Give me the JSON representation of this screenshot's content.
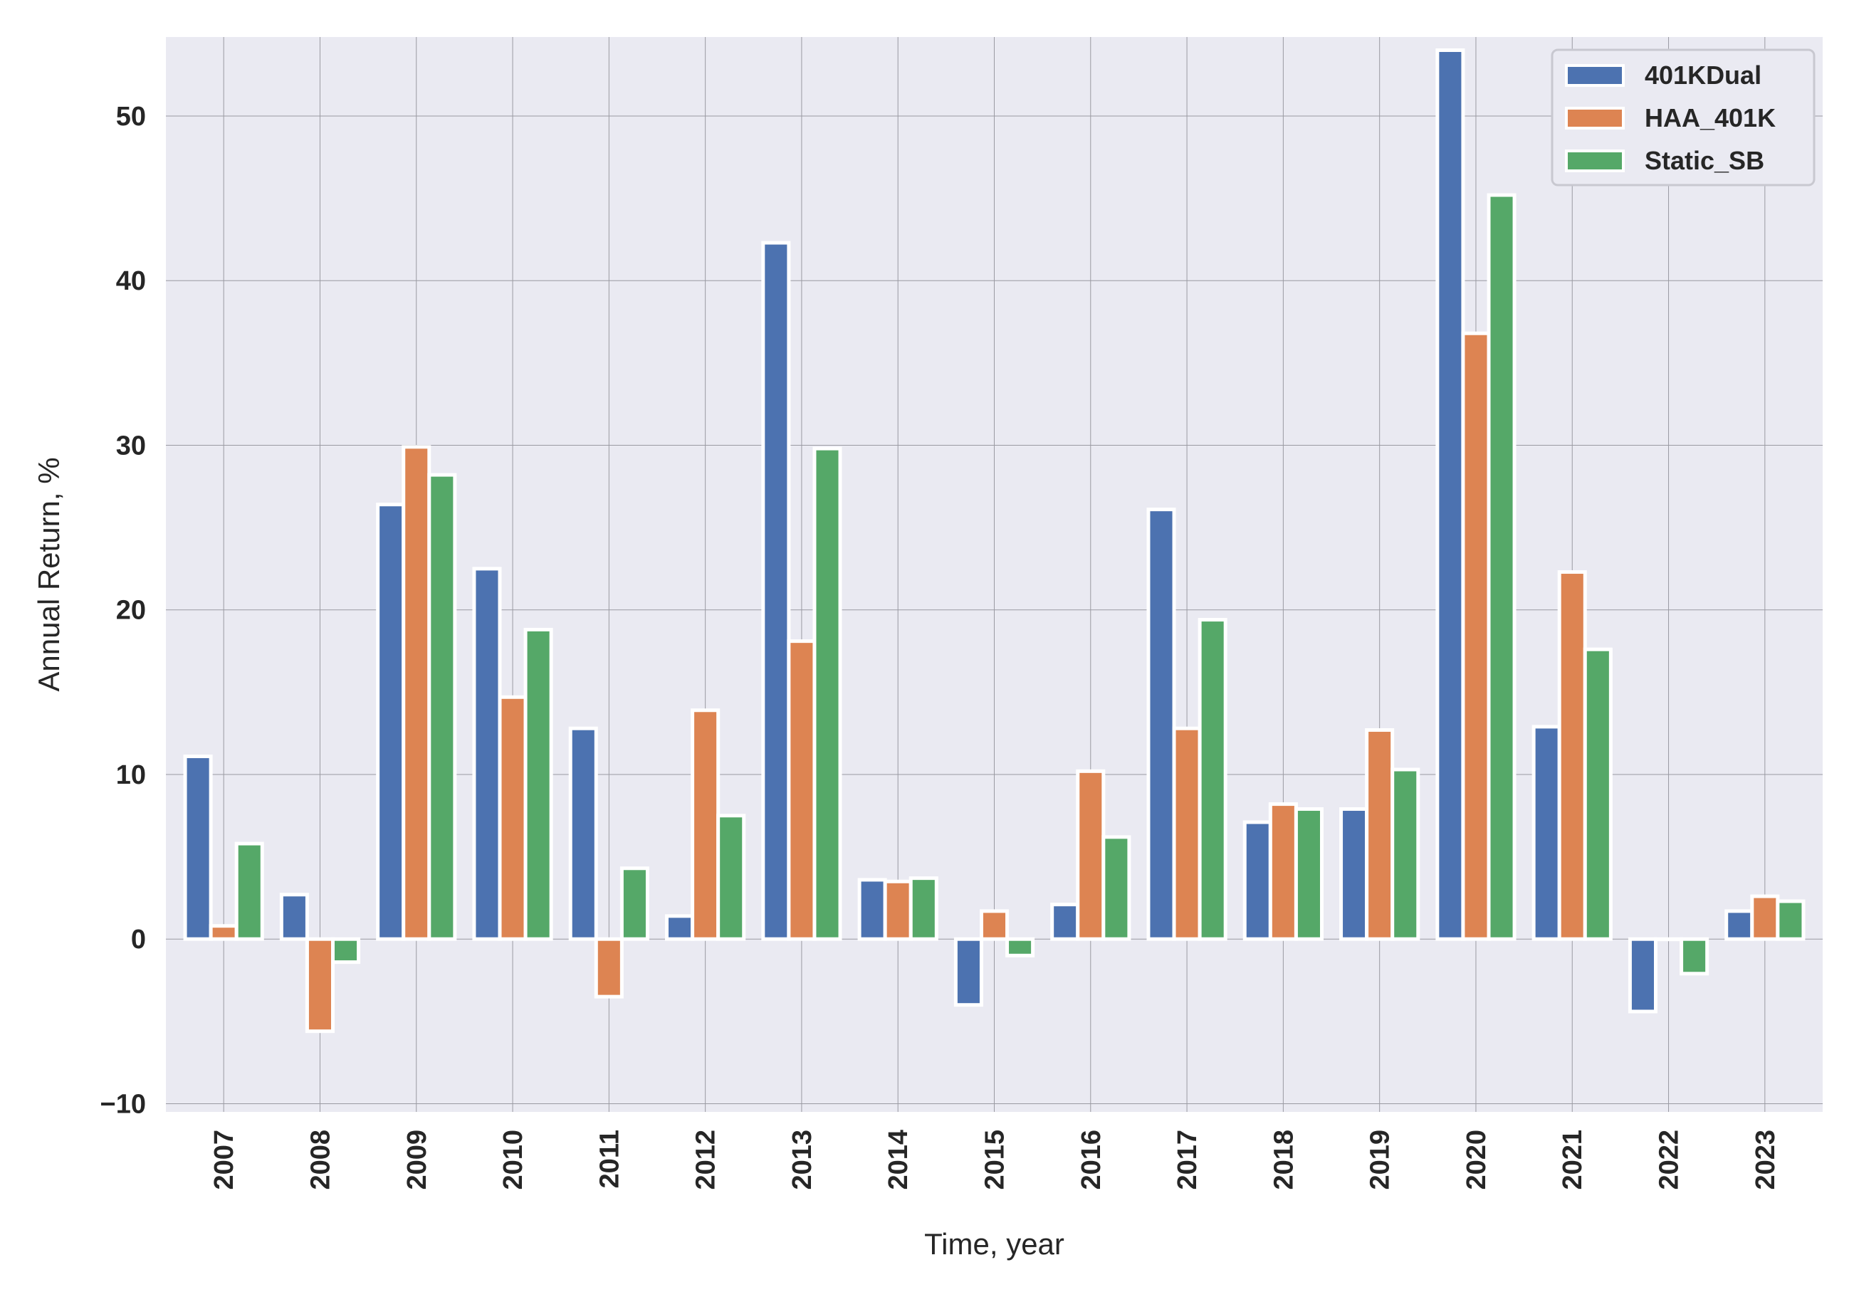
{
  "chart_data": {
    "type": "bar",
    "title": "",
    "xlabel": "Time, year",
    "ylabel": "Annual Return, %",
    "ylim": [
      -10.5,
      54.8
    ],
    "yticks": [
      -10,
      0,
      10,
      20,
      30,
      40,
      50
    ],
    "ytick_labels": [
      "−10",
      "0",
      "10",
      "20",
      "30",
      "40",
      "50"
    ],
    "grid": true,
    "legend_position": "top-right",
    "categories": [
      "2007",
      "2008",
      "2009",
      "2010",
      "2011",
      "2012",
      "2013",
      "2014",
      "2015",
      "2016",
      "2017",
      "2018",
      "2019",
      "2020",
      "2021",
      "2022",
      "2023"
    ],
    "series": [
      {
        "name": "401KDual",
        "color": "#4c72b0",
        "values": [
          11.1,
          2.7,
          26.4,
          22.5,
          12.8,
          1.4,
          42.3,
          3.6,
          -4.0,
          2.1,
          26.1,
          7.1,
          7.9,
          54.0,
          12.9,
          -4.4,
          1.7
        ]
      },
      {
        "name": "HAA_401K",
        "color": "#dd8452",
        "values": [
          0.8,
          -5.6,
          29.9,
          14.7,
          -3.5,
          13.9,
          18.1,
          3.5,
          1.7,
          10.2,
          12.8,
          8.2,
          12.7,
          36.8,
          22.3,
          0.0,
          2.6
        ]
      },
      {
        "name": "Static_SB",
        "color": "#55a868",
        "values": [
          5.8,
          -1.4,
          28.2,
          18.8,
          4.3,
          7.5,
          29.8,
          3.7,
          -1.0,
          6.2,
          19.4,
          7.9,
          10.3,
          45.2,
          17.6,
          -2.1,
          2.3
        ]
      }
    ]
  }
}
